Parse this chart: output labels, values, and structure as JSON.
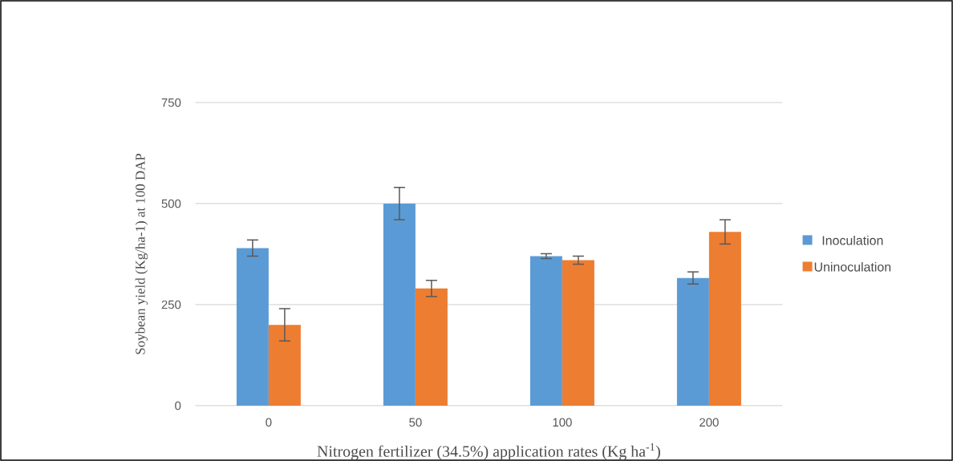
{
  "chart_data": {
    "type": "bar",
    "xlabel": "Nitrogen fertilizer (34.5%) application rates (Kg ha$^{-1}$)",
    "ylabel": "Soybean yield (Kg/ha-1) at 100 DAP",
    "categories": [
      "0",
      "50",
      "100",
      "200"
    ],
    "series": [
      {
        "name": "Inoculation",
        "color": "#5b9bd5",
        "values": [
          390,
          500,
          370,
          316
        ],
        "errors": [
          20,
          40,
          6,
          15
        ]
      },
      {
        "name": "Uninoculation",
        "color": "#ed7d31",
        "values": [
          200,
          290,
          360,
          430
        ],
        "errors": [
          40,
          20,
          10,
          30
        ]
      }
    ],
    "ylim": [
      0,
      750
    ],
    "yticks": [
      0,
      250,
      500,
      750
    ],
    "grid": "y",
    "legend": "right"
  }
}
